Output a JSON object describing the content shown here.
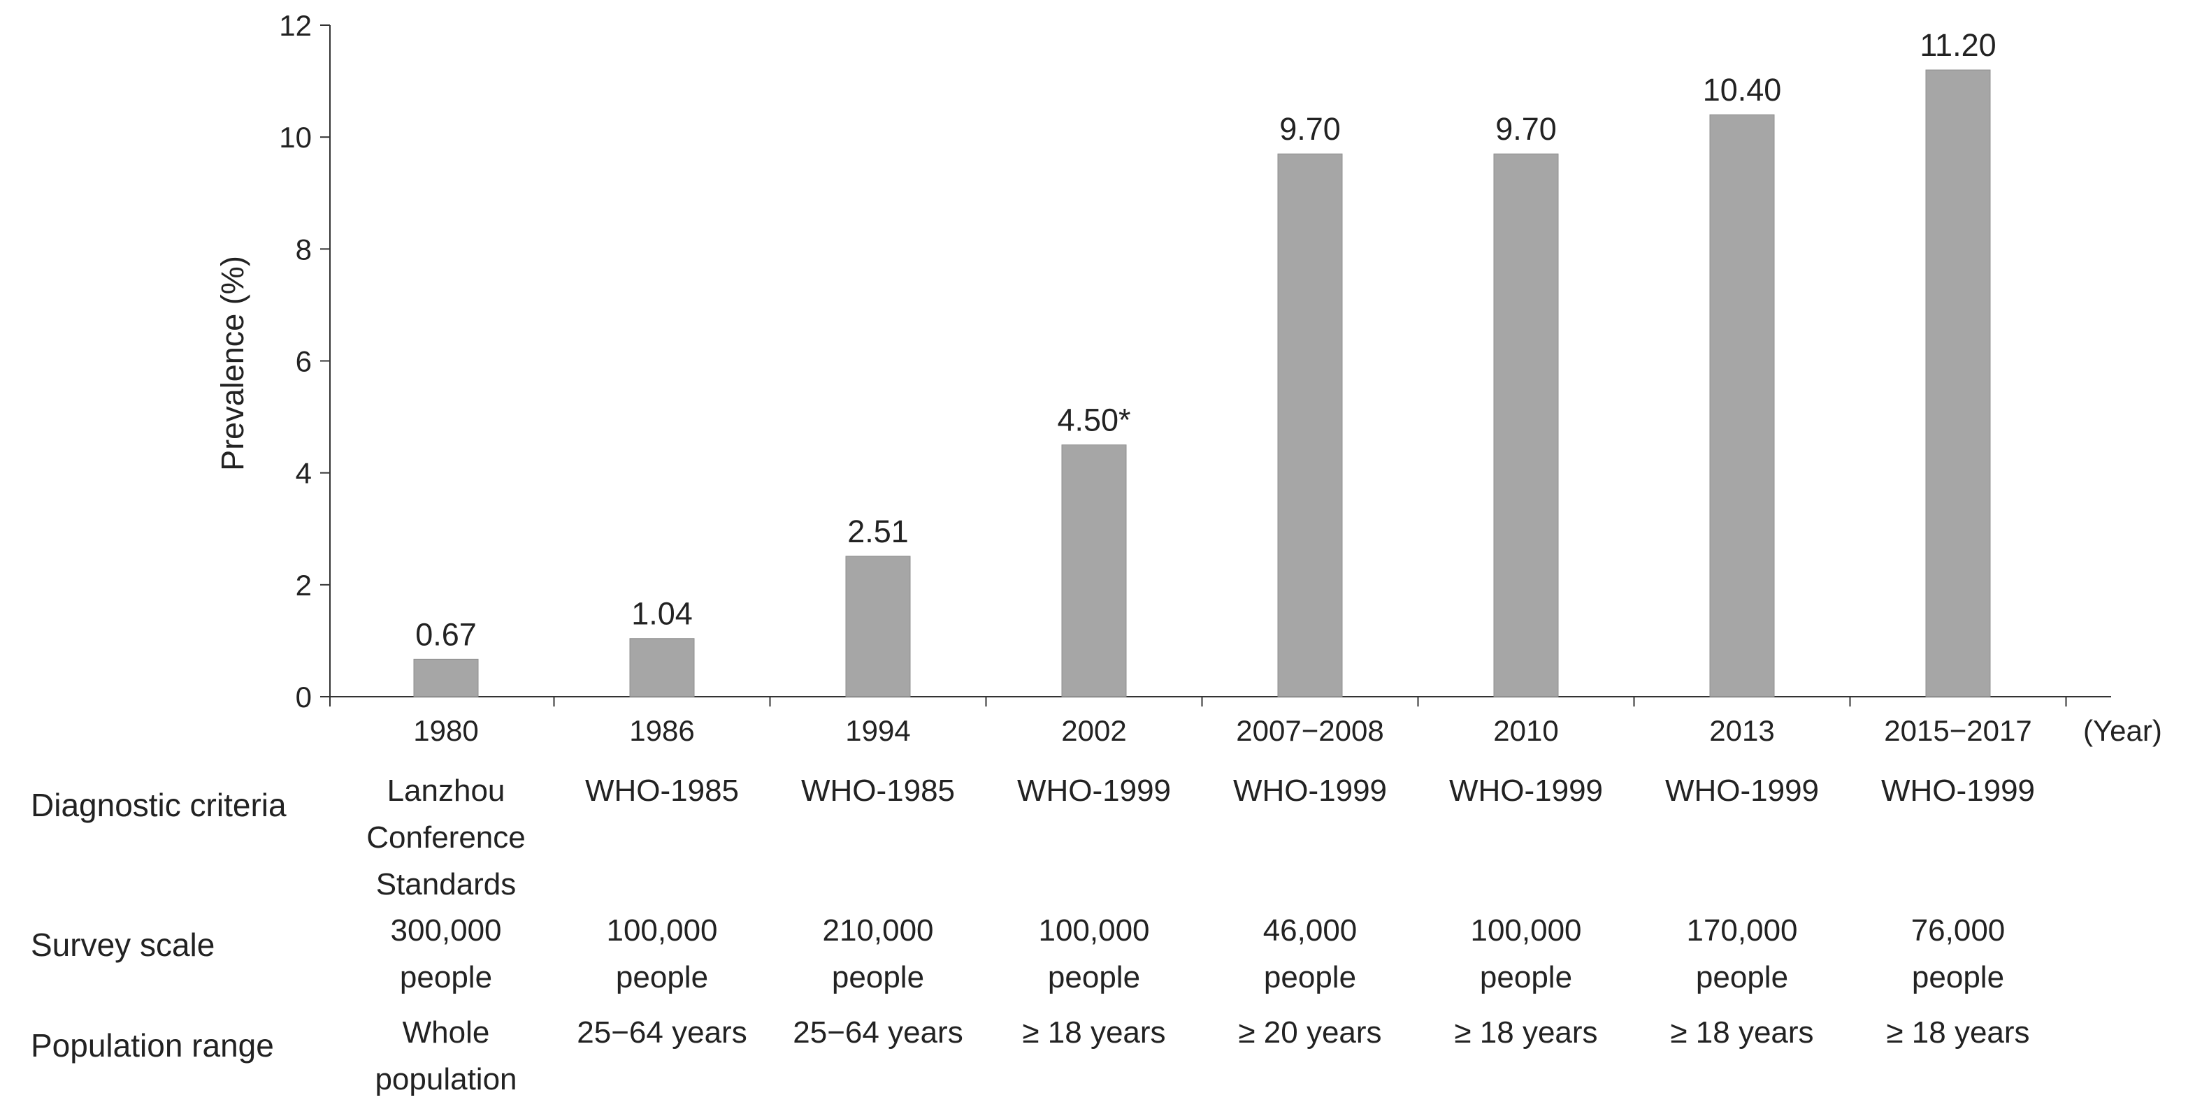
{
  "chart_data": {
    "type": "bar",
    "ylabel": "Prevalence (%)",
    "xunit_label": "(Year)",
    "ylim": [
      0,
      12
    ],
    "yticks": [
      0,
      2,
      4,
      6,
      8,
      10,
      12
    ],
    "grid": false,
    "bar_color": "#a6a6a6",
    "categories": [
      "1980",
      "1986",
      "1994",
      "2002",
      "2007−2008",
      "2010",
      "2013",
      "2015−2017"
    ],
    "values": [
      0.67,
      1.04,
      2.51,
      4.5,
      9.7,
      9.7,
      10.4,
      11.2
    ],
    "data_labels": [
      "0.67",
      "1.04",
      "2.51",
      "4.50*",
      "9.70",
      "9.70",
      "10.40",
      "11.20"
    ]
  },
  "table": {
    "rows": [
      {
        "label": "Diagnostic criteria",
        "cells": [
          [
            "Lanzhou",
            "Conference",
            "Standards"
          ],
          [
            "WHO-1985"
          ],
          [
            "WHO-1985"
          ],
          [
            "WHO-1999"
          ],
          [
            "WHO-1999"
          ],
          [
            "WHO-1999"
          ],
          [
            "WHO-1999"
          ],
          [
            "WHO-1999"
          ]
        ]
      },
      {
        "label": "Survey scale",
        "cells": [
          [
            "300,000",
            "people"
          ],
          [
            "100,000",
            "people"
          ],
          [
            "210,000",
            "people"
          ],
          [
            "100,000",
            "people"
          ],
          [
            "46,000",
            "people"
          ],
          [
            "100,000",
            "people"
          ],
          [
            "170,000",
            "people"
          ],
          [
            "76,000",
            "people"
          ]
        ]
      },
      {
        "label": "Population range",
        "cells": [
          [
            "Whole",
            "population"
          ],
          [
            "25−64 years"
          ],
          [
            "25−64 years"
          ],
          [
            "≥ 18 years"
          ],
          [
            "≥ 20 years"
          ],
          [
            "≥ 18 years"
          ],
          [
            "≥ 18 years"
          ],
          [
            "≥ 18 years"
          ]
        ]
      }
    ]
  }
}
